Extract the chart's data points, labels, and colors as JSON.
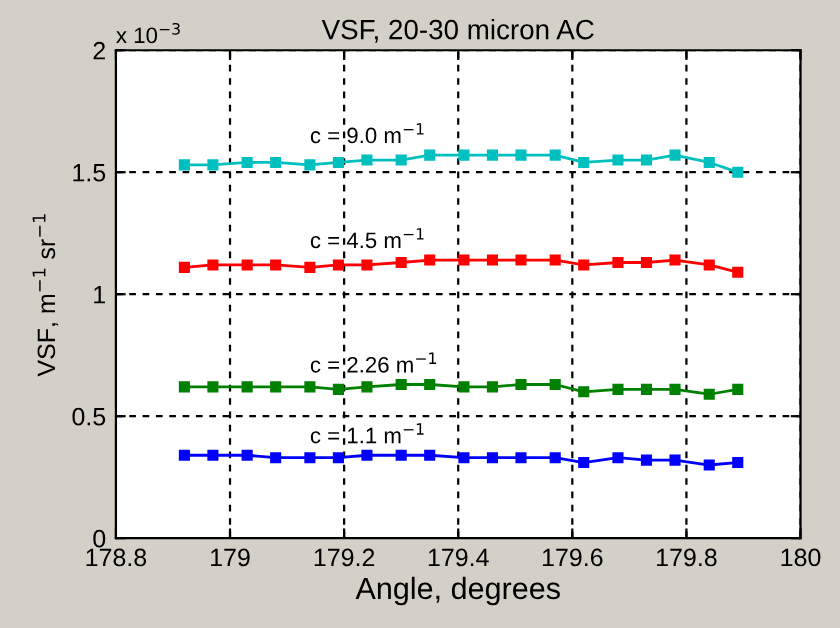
{
  "chart_data": {
    "type": "line",
    "title": "VSF, 20-30 micron AC",
    "xlabel": "Angle, degrees",
    "ylabel": "VSF, m$^{−1}$ sr$^{−1}$",
    "annotations": [
      "x 10$^{−3}$"
    ],
    "x": [
      178.92,
      178.97,
      179.03,
      179.08,
      179.14,
      179.19,
      179.24,
      179.3,
      179.35,
      179.41,
      179.46,
      179.51,
      179.57,
      179.62,
      179.68,
      179.73,
      179.78,
      179.84,
      179.89
    ],
    "series": [
      {
        "name": "c = 9.0 m$^{−1}$",
        "color": "#00bfbf",
        "values": [
          1.53,
          1.53,
          1.54,
          1.54,
          1.53,
          1.54,
          1.55,
          1.55,
          1.57,
          1.57,
          1.57,
          1.57,
          1.57,
          1.54,
          1.55,
          1.55,
          1.57,
          1.54,
          1.5
        ]
      },
      {
        "name": "c = 4.5 m$^{−1}$",
        "color": "#ff0000",
        "values": [
          1.11,
          1.12,
          1.12,
          1.12,
          1.11,
          1.12,
          1.12,
          1.13,
          1.14,
          1.14,
          1.14,
          1.14,
          1.14,
          1.12,
          1.13,
          1.13,
          1.14,
          1.12,
          1.09
        ]
      },
      {
        "name": "c = 2.26 m$^{−1}$",
        "color": "#008000",
        "values": [
          0.62,
          0.62,
          0.62,
          0.62,
          0.62,
          0.61,
          0.62,
          0.63,
          0.63,
          0.62,
          0.62,
          0.63,
          0.63,
          0.6,
          0.61,
          0.61,
          0.61,
          0.59,
          0.61
        ]
      },
      {
        "name": "c = 1.1 m$^{−1}$",
        "color": "#0000ff",
        "values": [
          0.34,
          0.34,
          0.34,
          0.33,
          0.33,
          0.33,
          0.34,
          0.34,
          0.34,
          0.33,
          0.33,
          0.33,
          0.33,
          0.31,
          0.33,
          0.32,
          0.32,
          0.3,
          0.31
        ]
      }
    ],
    "xlim": [
      178.8,
      180
    ],
    "xticks": [
      178.8,
      179,
      179.2,
      179.4,
      179.6,
      179.8,
      180
    ],
    "ylim": [
      0,
      2
    ],
    "yticks": [
      0,
      0.5,
      1,
      1.5,
      2
    ],
    "grid": true,
    "legend": false,
    "marker": "square",
    "line_style": "solid"
  }
}
